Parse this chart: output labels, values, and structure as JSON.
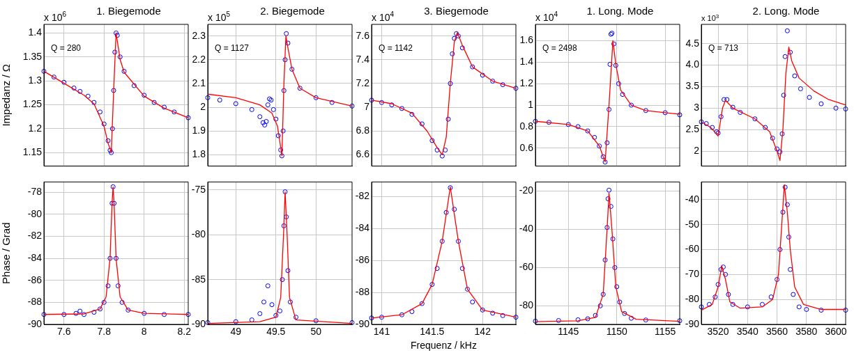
{
  "chart_data": [
    {
      "type": "scatter",
      "title": "1. Biegemode",
      "ylabel": "Impedanz / Ω",
      "annotations": [
        "x 10$^{6}$",
        "Q = 280"
      ],
      "xlim": [
        7.5,
        8.22
      ],
      "xticks": [
        7.6,
        7.8,
        8,
        8.2
      ],
      "ylim": [
        1.122,
        1.418
      ],
      "yticks": [
        1.15,
        1.2,
        1.25,
        1.3,
        1.35,
        1.4
      ],
      "grid": true,
      "tick_labels": "y",
      "series": [
        {
          "type": "scatter",
          "marker": "circle",
          "color": "#0000ff",
          "x": [
            7.5,
            7.55,
            7.6,
            7.65,
            7.68,
            7.72,
            7.75,
            7.78,
            7.8,
            7.82,
            7.83,
            7.836,
            7.842,
            7.848,
            7.854,
            7.86,
            7.866,
            7.88,
            7.9,
            7.95,
            8.0,
            8.05,
            8.1,
            8.15,
            8.22
          ],
          "values": [
            1.32,
            1.308,
            1.297,
            1.285,
            1.278,
            1.268,
            1.255,
            1.235,
            1.21,
            1.175,
            1.155,
            1.15,
            1.2,
            1.28,
            1.36,
            1.4,
            1.395,
            1.35,
            1.32,
            1.29,
            1.27,
            1.255,
            1.245,
            1.235,
            1.223
          ]
        },
        {
          "type": "line",
          "color": "#ff0000",
          "x": [
            7.5,
            7.6,
            7.7,
            7.75,
            7.8,
            7.82,
            7.836,
            7.848,
            7.86,
            7.88,
            7.9,
            8.0,
            8.1,
            8.22
          ],
          "values": [
            1.32,
            1.295,
            1.27,
            1.252,
            1.205,
            1.17,
            1.15,
            1.28,
            1.4,
            1.345,
            1.318,
            1.268,
            1.243,
            1.223
          ]
        }
      ]
    },
    {
      "type": "scatter",
      "title": "2. Biegemode",
      "annotations": [
        "x 10$^{5}$",
        "Q = 1127"
      ],
      "xlim": [
        48.65,
        50.45
      ],
      "xticks": [
        49,
        49.5,
        50
      ],
      "ylim": [
        1.752,
        2.349
      ],
      "yticks": [
        1.8,
        1.9,
        2,
        2.1,
        2.2,
        2.3
      ],
      "grid": true,
      "tick_labels": "y",
      "series": [
        {
          "type": "scatter",
          "marker": "circle",
          "color": "#0000ff",
          "x": [
            48.65,
            48.8,
            49.0,
            49.2,
            49.3,
            49.34,
            49.36,
            49.38,
            49.4,
            49.42,
            49.44,
            49.47,
            49.5,
            49.53,
            49.56,
            49.575,
            49.59,
            49.6,
            49.615,
            49.63,
            49.65,
            49.7,
            49.8,
            50.0,
            50.2,
            50.45
          ],
          "values": [
            2.04,
            2.03,
            2.015,
            1.99,
            1.96,
            1.935,
            1.925,
            1.94,
            2.01,
            2.035,
            2.03,
            1.99,
            1.95,
            1.88,
            1.82,
            1.795,
            1.9,
            2.07,
            2.2,
            2.31,
            2.27,
            2.16,
            2.08,
            2.04,
            2.02,
            2.005
          ]
        },
        {
          "type": "line",
          "color": "#ff0000",
          "x": [
            48.65,
            49.0,
            49.3,
            49.45,
            49.52,
            49.56,
            49.575,
            49.6,
            49.625,
            49.65,
            49.7,
            49.8,
            50.0,
            50.45
          ],
          "values": [
            2.055,
            2.04,
            2.01,
            1.975,
            1.92,
            1.83,
            1.795,
            2.1,
            2.3,
            2.25,
            2.16,
            2.08,
            2.04,
            2.005
          ]
        }
      ]
    },
    {
      "type": "scatter",
      "title": "3. Biegemode",
      "annotations": [
        "x 10$^{4}$",
        "Q = 1142"
      ],
      "xlim": [
        140.9,
        142.33
      ],
      "xticks": [
        141,
        141.5,
        142
      ],
      "ylim": [
        6.505,
        7.698
      ],
      "yticks": [
        6.6,
        6.8,
        7,
        7.2,
        7.4,
        7.6
      ],
      "grid": true,
      "tick_labels": "y",
      "series": [
        {
          "type": "scatter",
          "marker": "circle",
          "color": "#0000ff",
          "x": [
            140.9,
            141.0,
            141.1,
            141.2,
            141.3,
            141.4,
            141.5,
            141.55,
            141.6,
            141.63,
            141.66,
            141.68,
            141.7,
            141.72,
            141.74,
            141.76,
            141.8,
            141.9,
            142.0,
            142.1,
            142.2,
            142.33
          ],
          "values": [
            7.06,
            7.04,
            7.02,
            6.99,
            6.94,
            6.86,
            6.72,
            6.64,
            6.59,
            6.64,
            6.9,
            7.2,
            7.45,
            7.58,
            7.62,
            7.6,
            7.5,
            7.34,
            7.27,
            7.22,
            7.19,
            7.16
          ]
        },
        {
          "type": "line",
          "color": "#ff0000",
          "x": [
            140.9,
            141.1,
            141.3,
            141.45,
            141.55,
            141.6,
            141.64,
            141.68,
            141.72,
            141.75,
            141.8,
            141.9,
            142.1,
            142.33
          ],
          "values": [
            7.06,
            7.03,
            6.95,
            6.8,
            6.66,
            6.6,
            6.75,
            7.2,
            7.55,
            7.63,
            7.52,
            7.34,
            7.22,
            7.16
          ]
        }
      ]
    },
    {
      "type": "scatter",
      "title": "1. Long. Mode",
      "annotations": [
        "x 10$^{4}$",
        "Q = 2498"
      ],
      "xlim": [
        1141.6,
        1156.5
      ],
      "xticks": [
        1145,
        1150,
        1155
      ],
      "ylim": [
        0.433,
        1.752
      ],
      "yticks": [
        0.6,
        0.8,
        1,
        1.2,
        1.4,
        1.6
      ],
      "grid": true,
      "tick_labels": "y",
      "series": [
        {
          "type": "scatter",
          "marker": "circle",
          "color": "#0000ff",
          "x": [
            1141.6,
            1143,
            1145,
            1146,
            1147,
            1147.7,
            1148.2,
            1148.6,
            1148.8,
            1149.0,
            1149.2,
            1149.3,
            1149.4,
            1149.5,
            1149.7,
            1149.9,
            1150.2,
            1150.6,
            1151.5,
            1153,
            1155,
            1156.5
          ],
          "values": [
            0.85,
            0.84,
            0.82,
            0.8,
            0.76,
            0.7,
            0.62,
            0.52,
            0.47,
            0.65,
            0.96,
            1.38,
            1.66,
            1.67,
            1.57,
            1.37,
            1.2,
            1.1,
            1.0,
            0.95,
            0.93,
            0.91
          ]
        },
        {
          "type": "line",
          "color": "#ff0000",
          "x": [
            1141.6,
            1145,
            1147,
            1148.2,
            1148.8,
            1149.2,
            1149.6,
            1149.9,
            1150.4,
            1151.5,
            1153,
            1156.5
          ],
          "values": [
            0.85,
            0.82,
            0.76,
            0.62,
            0.47,
            1.0,
            1.6,
            1.38,
            1.14,
            1.0,
            0.95,
            0.915
          ]
        }
      ]
    },
    {
      "type": "scatter",
      "title": "2. Long. Mode",
      "annotations": [
        "x 10$^{3}$",
        "Q = 713"
      ],
      "xlim": [
        3508.6,
        3606.6
      ],
      "xticks": [
        3520,
        3540,
        3560,
        3580,
        3600
      ],
      "ylim": [
        1.65,
        4.95
      ],
      "yticks": [
        2,
        2.5,
        3,
        3.5,
        {
          "value": 4,
          "label": "4.0"
        },
        4.5
      ],
      "grid": true,
      "tick_labels": "y",
      "series": [
        {
          "type": "scatter",
          "marker": "circle",
          "color": "#0000ff",
          "x": [
            3508.6,
            3512,
            3516,
            3519,
            3520,
            3522,
            3524,
            3526,
            3530,
            3535,
            3545,
            3552,
            3557,
            3560,
            3562,
            3563.5,
            3564.5,
            3565.5,
            3567,
            3569,
            3572,
            3576,
            3582,
            3590,
            3600,
            3606.6
          ],
          "values": [
            2.68,
            2.64,
            2.55,
            2.45,
            2.42,
            2.8,
            3.2,
            3.2,
            3.02,
            2.9,
            2.75,
            2.55,
            2.3,
            2.05,
            1.98,
            2.4,
            3.3,
            4.2,
            4.8,
            4.3,
            3.75,
            3.45,
            3.25,
            3.1,
            3.0,
            2.98
          ]
        },
        {
          "type": "line",
          "color": "#ff0000",
          "x": [
            3508.6,
            3515,
            3520,
            3523,
            3525,
            3530,
            3545,
            3555,
            3560,
            3562,
            3564,
            3566,
            3568,
            3570,
            3575,
            3585,
            3595,
            3606.6
          ],
          "values": [
            2.68,
            2.55,
            2.35,
            3.0,
            3.18,
            3.0,
            2.75,
            2.45,
            2.0,
            1.78,
            2.5,
            3.8,
            4.42,
            4.1,
            3.7,
            3.4,
            3.2,
            3.07
          ]
        }
      ]
    },
    {
      "type": "scatter",
      "ylabel": "Phase / Grad",
      "xlim": [
        7.5,
        8.22
      ],
      "xticks": [
        7.6,
        7.8,
        8,
        8.2
      ],
      "ylim": [
        -90,
        -77.06
      ],
      "yticks": [
        -90,
        -88,
        -86,
        -84,
        -82,
        -80,
        -78
      ],
      "grid": true,
      "series": [
        {
          "type": "scatter",
          "marker": "circle",
          "color": "#0000ff",
          "x": [
            7.5,
            7.6,
            7.66,
            7.68,
            7.7,
            7.75,
            7.78,
            7.8,
            7.82,
            7.83,
            7.84,
            7.845,
            7.85,
            7.86,
            7.87,
            7.89,
            7.92,
            8.0,
            8.1,
            8.22
          ],
          "values": [
            -89.1,
            -89.1,
            -89.0,
            -88.8,
            -89.1,
            -88.9,
            -88.6,
            -88.0,
            -86.5,
            -84,
            -79,
            -77.5,
            -79,
            -84,
            -86.5,
            -88.0,
            -88.7,
            -89.0,
            -89.1,
            -89.1
          ]
        },
        {
          "type": "line",
          "color": "#ff0000",
          "x": [
            7.5,
            7.7,
            7.78,
            7.81,
            7.83,
            7.84,
            7.845,
            7.85,
            7.86,
            7.88,
            7.92,
            8.0,
            8.22
          ],
          "values": [
            -89.1,
            -89.05,
            -88.6,
            -87.5,
            -84,
            -79,
            -77.5,
            -79,
            -84,
            -87.5,
            -88.7,
            -89.0,
            -89.1
          ]
        }
      ]
    },
    {
      "type": "scatter",
      "xlim": [
        48.65,
        50.45
      ],
      "xticks": [
        49,
        49.5,
        50
      ],
      "ylim": [
        -90,
        -74.1
      ],
      "yticks": [
        -90,
        -85,
        -80,
        -75
      ],
      "grid": true,
      "series": [
        {
          "type": "scatter",
          "marker": "circle",
          "color": "#0000ff",
          "x": [
            48.65,
            49.0,
            49.2,
            49.3,
            49.35,
            49.4,
            49.45,
            49.5,
            49.55,
            49.58,
            49.6,
            49.615,
            49.63,
            49.65,
            49.68,
            49.75,
            50.0,
            50.45
          ],
          "values": [
            -89.8,
            -89.7,
            -89.5,
            -88.8,
            -87.5,
            -85.7,
            -87.8,
            -89.0,
            -88.5,
            -85,
            -79,
            -75.2,
            -78,
            -84,
            -87.5,
            -89.2,
            -89.6,
            -89.8
          ]
        },
        {
          "type": "line",
          "color": "#ff0000",
          "x": [
            48.65,
            49.3,
            49.5,
            49.56,
            49.6,
            49.615,
            49.64,
            49.67,
            49.75,
            50.45
          ],
          "values": [
            -89.9,
            -89.7,
            -89.2,
            -87,
            -79,
            -75.2,
            -80,
            -87,
            -89.5,
            -89.9
          ]
        }
      ]
    },
    {
      "type": "scatter",
      "xlabel": "Frequenz / kHz",
      "xlim": [
        140.9,
        142.33
      ],
      "xticks": [
        141,
        141.5,
        142
      ],
      "ylim": [
        -90,
        -81.09
      ],
      "yticks": [
        -90,
        -88,
        -86,
        -84,
        -82
      ],
      "grid": true,
      "series": [
        {
          "type": "scatter",
          "marker": "circle",
          "color": "#0000ff",
          "x": [
            140.9,
            141.0,
            141.2,
            141.3,
            141.4,
            141.5,
            141.55,
            141.6,
            141.64,
            141.68,
            141.72,
            141.76,
            141.8,
            141.85,
            141.9,
            142.0,
            142.1,
            142.2,
            142.33
          ],
          "values": [
            -89.6,
            -89.55,
            -89.4,
            -89.2,
            -88.7,
            -87.5,
            -86.5,
            -84.8,
            -83,
            -81.45,
            -82.8,
            -84.8,
            -86.5,
            -87.8,
            -88.6,
            -89.1,
            -89.3,
            -89.45,
            -89.55
          ]
        },
        {
          "type": "line",
          "color": "#ff0000",
          "x": [
            140.9,
            141.2,
            141.4,
            141.5,
            141.6,
            141.68,
            141.76,
            141.85,
            142.0,
            142.33
          ],
          "values": [
            -89.6,
            -89.4,
            -88.7,
            -87.5,
            -84.8,
            -81.4,
            -84.8,
            -87.8,
            -89.1,
            -89.55
          ]
        }
      ]
    },
    {
      "type": "scatter",
      "xlim": [
        1141.6,
        1156.5
      ],
      "xticks": [
        1145,
        1150,
        1155
      ],
      "ylim": [
        -89.7,
        -15.2
      ],
      "yticks": [
        -80,
        -60,
        -40,
        -20
      ],
      "grid": true,
      "series": [
        {
          "type": "scatter",
          "marker": "circle",
          "color": "#0000ff",
          "x": [
            1141.6,
            1144,
            1146,
            1147,
            1147.8,
            1148.3,
            1148.6,
            1148.8,
            1149.0,
            1149.1,
            1149.2,
            1149.4,
            1149.6,
            1149.8,
            1150.0,
            1150.3,
            1150.8,
            1151.5,
            1153,
            1156.5
          ],
          "values": [
            -88,
            -87.7,
            -87.3,
            -86.8,
            -85,
            -80,
            -74,
            -56,
            -39,
            -24,
            -19.5,
            -28,
            -45,
            -60,
            -70,
            -78,
            -84,
            -86.5,
            -87.4,
            -87.8
          ]
        },
        {
          "type": "line",
          "color": "#ff0000",
          "x": [
            1141.6,
            1146,
            1147.8,
            1148.6,
            1149.0,
            1149.2,
            1149.5,
            1149.9,
            1150.5,
            1152,
            1156.5
          ],
          "values": [
            -88.3,
            -87.8,
            -86,
            -74,
            -40,
            -21,
            -40,
            -70,
            -83,
            -87,
            -88.1
          ]
        }
      ]
    },
    {
      "type": "scatter",
      "xlim": [
        3508.6,
        3606.6
      ],
      "xticks": [
        3520,
        3540,
        3560,
        3580,
        3600
      ],
      "ylim": [
        -90,
        -32.9
      ],
      "yticks": [
        -90,
        -80,
        -70,
        -60,
        -50,
        -40
      ],
      "grid": true,
      "series": [
        {
          "type": "scatter",
          "marker": "circle",
          "color": "#0000ff",
          "x": [
            3508.6,
            3514,
            3518,
            3520,
            3522,
            3523.5,
            3525,
            3527,
            3530,
            3540,
            3550,
            3556,
            3560,
            3562,
            3564,
            3565.5,
            3567,
            3568,
            3569,
            3571,
            3575,
            3580,
            3590,
            3606.6
          ],
          "values": [
            -83,
            -82,
            -79,
            -74,
            -68,
            -67,
            -70,
            -78,
            -82,
            -83,
            -82,
            -79,
            -72,
            -60,
            -45,
            -35,
            -42,
            -55,
            -68,
            -78,
            -83,
            -84,
            -84.3,
            -84.3
          ]
        },
        {
          "type": "line",
          "color": "#ff0000",
          "x": [
            3508.6,
            3516,
            3520,
            3522.5,
            3525,
            3528,
            3535,
            3550,
            3557,
            3561,
            3563,
            3565,
            3567,
            3569,
            3572,
            3578,
            3590,
            3606.6
          ],
          "values": [
            -84.3,
            -82,
            -75,
            -66.5,
            -72,
            -81,
            -83.5,
            -83,
            -80,
            -70,
            -52,
            -34,
            -45,
            -60,
            -75,
            -82,
            -84,
            -84
          ]
        }
      ]
    }
  ]
}
